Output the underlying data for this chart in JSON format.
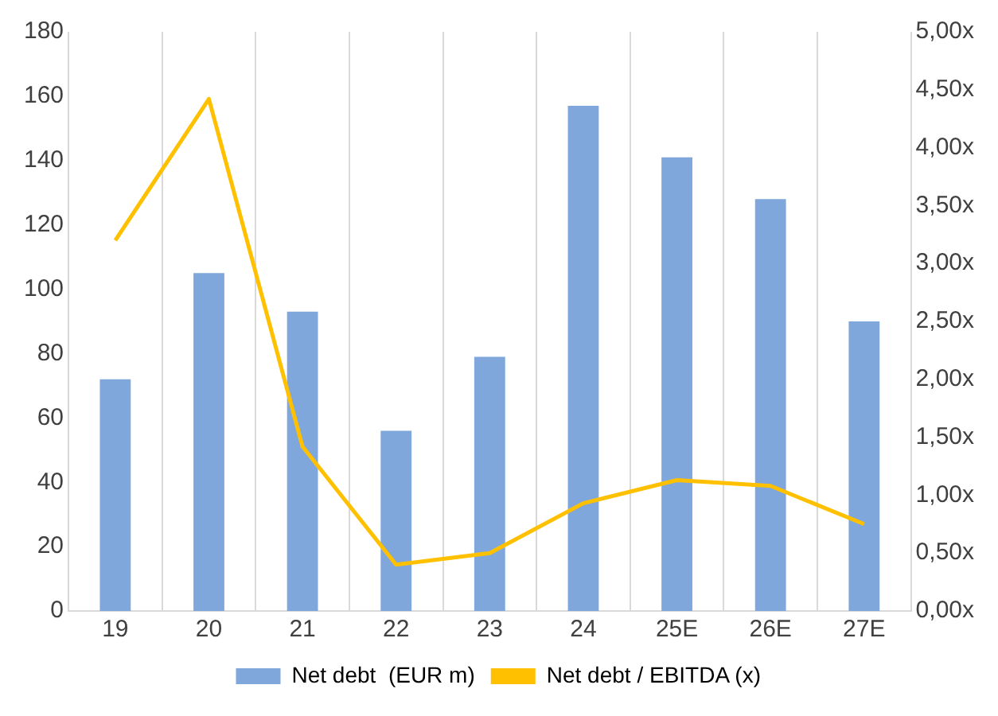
{
  "chart_data": {
    "type": "bar",
    "categories": [
      "19",
      "20",
      "21",
      "22",
      "23",
      "24",
      "25E",
      "26E",
      "27E"
    ],
    "series": [
      {
        "name": "Net debt  (EUR m)",
        "color": "#7fa7dc",
        "values": [
          72,
          105,
          93,
          56,
          79,
          157,
          141,
          128,
          90
        ]
      },
      {
        "name": "Net debt / EBITDA (x)",
        "type": "line",
        "axis": "y2",
        "color": "#ffc000",
        "marker": "none",
        "values": [
          3.2,
          4.42,
          1.42,
          0.4,
          0.5,
          0.93,
          1.13,
          1.08,
          0.75
        ]
      }
    ],
    "ylim": [
      0,
      180
    ],
    "yticks": [
      0,
      20,
      40,
      60,
      80,
      100,
      120,
      140,
      160,
      180
    ],
    "y2lim": [
      0,
      5
    ],
    "y2ticks": [
      {
        "value": 0,
        "label": "0,00x"
      },
      {
        "value": 0.5,
        "label": "0,50x"
      },
      {
        "value": 1,
        "label": "1,00x"
      },
      {
        "value": 1.5,
        "label": "1,50x"
      },
      {
        "value": 2,
        "label": "2,00x"
      },
      {
        "value": 2.5,
        "label": "2,50x"
      },
      {
        "value": 3,
        "label": "3,00x"
      },
      {
        "value": 3.5,
        "label": "3,50x"
      },
      {
        "value": 4,
        "label": "4,00x"
      },
      {
        "value": 4.5,
        "label": "4,50x"
      },
      {
        "value": 5,
        "label": "5,00x"
      }
    ],
    "grid": "x",
    "legend": "bottom"
  }
}
